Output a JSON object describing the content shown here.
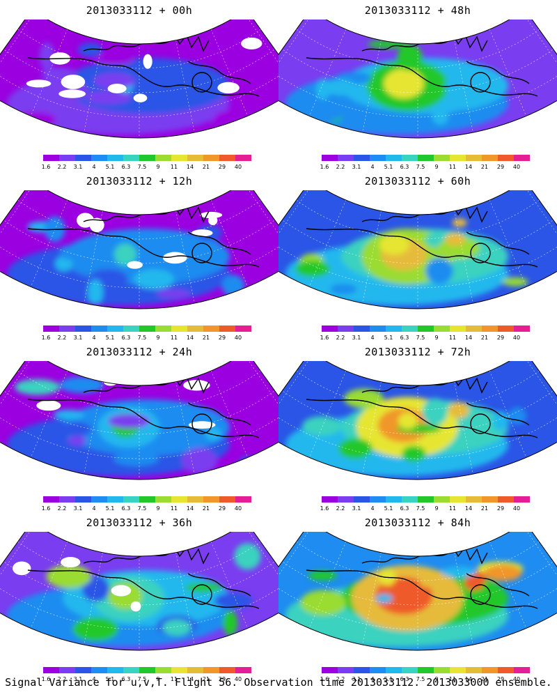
{
  "panels": [
    {
      "title": "2013033112 + 00h",
      "lead_hours": 0
    },
    {
      "title": "2013033112 + 48h",
      "lead_hours": 48
    },
    {
      "title": "2013033112 + 12h",
      "lead_hours": 12
    },
    {
      "title": "2013033112 + 60h",
      "lead_hours": 60
    },
    {
      "title": "2013033112 + 24h",
      "lead_hours": 24
    },
    {
      "title": "2013033112 + 72h",
      "lead_hours": 72
    },
    {
      "title": "2013033112 + 36h",
      "lead_hours": 36
    },
    {
      "title": "2013033112 + 84h",
      "lead_hours": 84
    }
  ],
  "colorbar": {
    "labels": [
      "1.6",
      "2.2",
      "3.1",
      "4",
      "5.1",
      "6.3",
      "7.5",
      "9",
      "11",
      "14",
      "21",
      "29",
      "40"
    ],
    "colors": [
      "#9a00e0",
      "#7a3df0",
      "#2a55e6",
      "#1e8cf0",
      "#22b8ee",
      "#3ad2c0",
      "#22c82a",
      "#9adc32",
      "#e6e632",
      "#e6bb3a",
      "#f0962a",
      "#ee5a2a",
      "#e61e96"
    ]
  },
  "footer": "Signal Variance for u,v,T. Flight 56. Observation time 2013033112. 2013033000 ensemble."
}
